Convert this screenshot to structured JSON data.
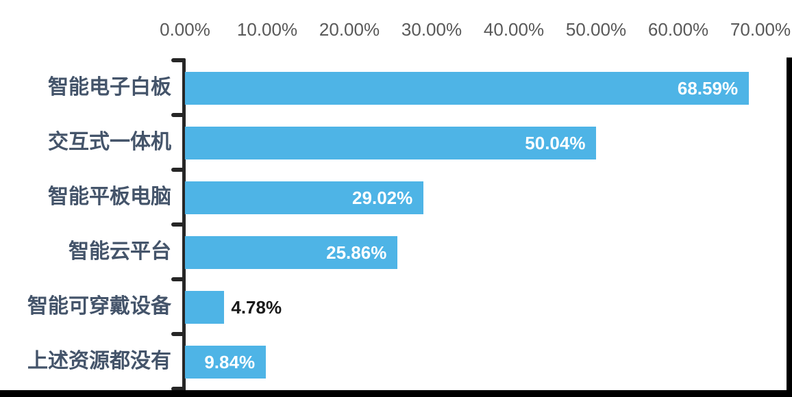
{
  "chart_data": {
    "type": "bar",
    "orientation": "horizontal",
    "title": "",
    "categories": [
      "智能电子白板",
      "交互式一体机",
      "智能平板电脑",
      "智能云平台",
      "智能可穿戴设备",
      "上述资源都没有"
    ],
    "values": [
      68.59,
      50.04,
      29.02,
      25.86,
      4.78,
      9.84
    ],
    "value_labels": [
      "68.59%",
      "50.04%",
      "29.02%",
      "25.86%",
      "4.78%",
      "9.84%"
    ],
    "value_label_placement": [
      "inside",
      "inside",
      "inside",
      "inside",
      "outside",
      "inside"
    ],
    "x_ticks": [
      "0.00%",
      "10.00%",
      "20.00%",
      "30.00%",
      "40.00%",
      "50.00%",
      "60.00%",
      "70.00%"
    ],
    "x_tick_values": [
      0,
      10,
      20,
      30,
      40,
      50,
      60,
      70
    ],
    "x_range": [
      0,
      70
    ],
    "xlabel": "",
    "ylabel": "",
    "legend": "none",
    "grid": "off",
    "colors": {
      "bar": "#4EB4E6",
      "value_label_inside": "#FFFFFF",
      "value_label_outside": "#1A1A1A",
      "category_label": "#44546A",
      "tick_label": "#595959",
      "axis_line": "#262626",
      "frame_border": "#000000"
    }
  }
}
